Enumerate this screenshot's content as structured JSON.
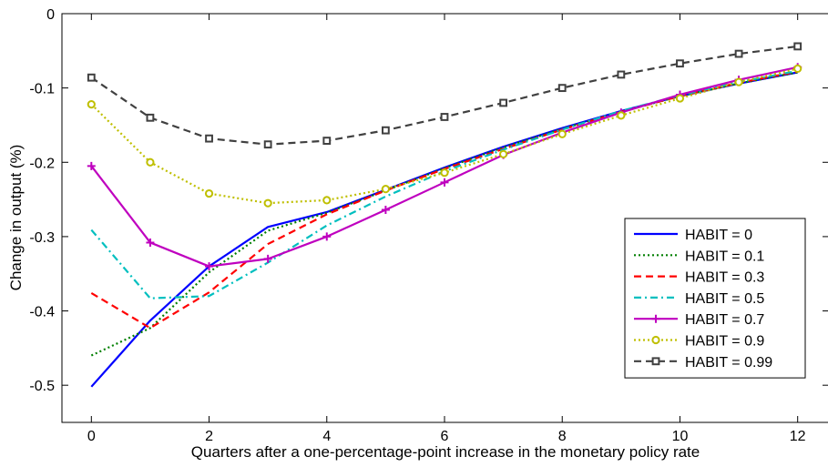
{
  "chart_data": {
    "type": "line",
    "title": "",
    "xlabel": "Quarters after a one-percentage-point increase in the monetary policy rate",
    "ylabel": "Change in output (%)",
    "xlim": [
      -0.5,
      12.5
    ],
    "ylim": [
      -0.55,
      0
    ],
    "x_ticks": [
      0,
      2,
      4,
      6,
      8,
      10,
      12
    ],
    "y_ticks": [
      0,
      -0.1,
      -0.2,
      -0.3,
      -0.4,
      -0.5
    ],
    "y_tick_labels": [
      "0",
      "-0.1",
      "-0.2",
      "-0.3",
      "-0.4",
      "-0.5"
    ],
    "grid": false,
    "legend_position": "right",
    "x": [
      0,
      1,
      2,
      3,
      4,
      5,
      6,
      7,
      8,
      9,
      10,
      11,
      12
    ],
    "series": [
      {
        "name": "HABIT = 0",
        "color": "#0000ff",
        "dash": "solid",
        "marker": "none",
        "values": [
          -0.502,
          -0.413,
          -0.34,
          -0.287,
          -0.267,
          -0.237,
          -0.207,
          -0.179,
          -0.154,
          -0.131,
          -0.111,
          -0.094,
          -0.079
        ]
      },
      {
        "name": "HABIT = 0.1",
        "color": "#007f00",
        "dash": "dotted",
        "marker": "none",
        "values": [
          -0.46,
          -0.423,
          -0.348,
          -0.292,
          -0.268,
          -0.238,
          -0.208,
          -0.18,
          -0.155,
          -0.132,
          -0.111,
          -0.094,
          -0.079
        ]
      },
      {
        "name": "HABIT = 0.3",
        "color": "#ff0000",
        "dash": "dashed",
        "marker": "none",
        "values": [
          -0.376,
          -0.423,
          -0.375,
          -0.31,
          -0.27,
          -0.238,
          -0.209,
          -0.182,
          -0.156,
          -0.132,
          -0.111,
          -0.093,
          -0.078
        ]
      },
      {
        "name": "HABIT = 0.5",
        "color": "#00bfbf",
        "dash": "dashdot",
        "marker": "none",
        "values": [
          -0.291,
          -0.383,
          -0.38,
          -0.335,
          -0.285,
          -0.246,
          -0.212,
          -0.183,
          -0.156,
          -0.131,
          -0.11,
          -0.092,
          -0.077
        ]
      },
      {
        "name": "HABIT = 0.7",
        "color": "#bf00bf",
        "dash": "solid",
        "marker": "plus",
        "values": [
          -0.205,
          -0.308,
          -0.34,
          -0.33,
          -0.3,
          -0.264,
          -0.227,
          -0.19,
          -0.16,
          -0.133,
          -0.109,
          -0.089,
          -0.072
        ]
      },
      {
        "name": "HABIT = 0.9",
        "color": "#bfbf00",
        "dash": "dotted",
        "marker": "circle",
        "values": [
          -0.122,
          -0.2,
          -0.242,
          -0.255,
          -0.251,
          -0.236,
          -0.214,
          -0.189,
          -0.162,
          -0.137,
          -0.114,
          -0.092,
          -0.074
        ]
      },
      {
        "name": "HABIT = 0.99",
        "color": "#404040",
        "dash": "dashed",
        "marker": "square",
        "values": [
          -0.086,
          -0.14,
          -0.168,
          -0.176,
          -0.171,
          -0.157,
          -0.139,
          -0.12,
          -0.1,
          -0.082,
          -0.067,
          -0.054,
          -0.044
        ]
      }
    ]
  }
}
